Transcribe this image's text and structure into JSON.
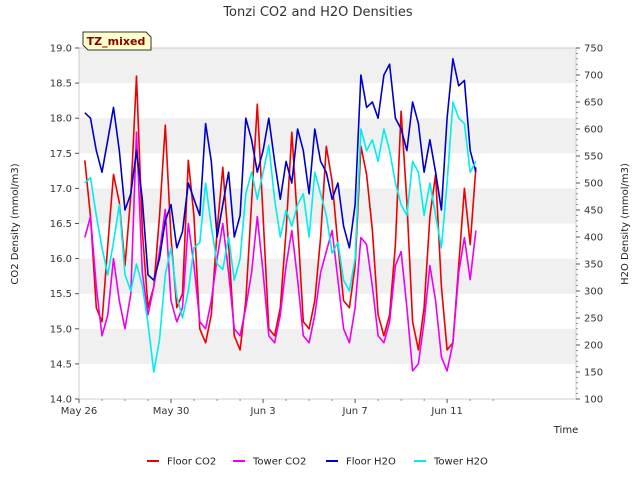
{
  "chart_data": {
    "type": "line",
    "title": "Tonzi CO2 and H2O Densities",
    "badge": "TZ_mixed",
    "xlabel": "Time",
    "ylabel_left": "CO2 Density (mmol/m3)",
    "ylabel_right": "H2O Density (mmol/m3)",
    "ylim_left": [
      14.0,
      19.0
    ],
    "ylim_right": [
      100,
      750
    ],
    "xlim": [
      0,
      21.6
    ],
    "x_ticks": [
      {
        "x": 0,
        "label": "May 26"
      },
      {
        "x": 4,
        "label": "May 30"
      },
      {
        "x": 8,
        "label": "Jun 3"
      },
      {
        "x": 12,
        "label": "Jun 7"
      },
      {
        "x": 16,
        "label": "Jun 11"
      }
    ],
    "y_ticks_left": [
      "14.0",
      "14.5",
      "15.0",
      "15.5",
      "16.0",
      "16.5",
      "17.0",
      "17.5",
      "18.0",
      "18.5",
      "19.0"
    ],
    "y_ticks_right": [
      "100",
      "150",
      "200",
      "250",
      "300",
      "350",
      "400",
      "450",
      "500",
      "550",
      "600",
      "650",
      "700",
      "750"
    ],
    "grid": "horizontal-bands",
    "legend_position": "bottom",
    "colors": {
      "floor_co2": "#ee0000",
      "tower_co2": "#ee00ee",
      "floor_h2o": "#0000cc",
      "tower_h2o": "#00eeee",
      "band": "#f0f0f0"
    },
    "series": [
      {
        "name": "Floor CO2",
        "axis": "left",
        "color": "#ee0000",
        "x": [
          0.25,
          0.5,
          0.75,
          1.0,
          1.25,
          1.5,
          1.75,
          2.0,
          2.25,
          2.5,
          2.75,
          3.0,
          3.25,
          3.5,
          3.75,
          4.0,
          4.25,
          4.5,
          4.75,
          5.0,
          5.25,
          5.5,
          5.75,
          6.0,
          6.25,
          6.5,
          6.75,
          7.0,
          7.25,
          7.5,
          7.75,
          8.0,
          8.25,
          8.5,
          8.75,
          9.0,
          9.25,
          9.5,
          9.75,
          10.0,
          10.25,
          10.5,
          10.75,
          11.0,
          11.25,
          11.5,
          11.75,
          12.0,
          12.25,
          12.5,
          12.75,
          13.0,
          13.25,
          13.5,
          13.75,
          14.0,
          14.25,
          14.5,
          14.75,
          15.0,
          15.25,
          15.5,
          15.75,
          16.0,
          16.25,
          16.5,
          16.75,
          17.0,
          17.25
        ],
        "y": [
          17.4,
          16.6,
          15.3,
          15.1,
          16.2,
          17.2,
          16.8,
          15.9,
          16.9,
          18.6,
          16.4,
          15.3,
          15.6,
          16.6,
          17.9,
          16.3,
          15.3,
          15.5,
          17.4,
          16.6,
          15.0,
          14.8,
          15.2,
          16.4,
          17.3,
          16.2,
          14.9,
          14.7,
          15.4,
          16.8,
          18.2,
          16.6,
          15.0,
          14.9,
          15.3,
          16.4,
          17.8,
          16.5,
          15.1,
          15.0,
          15.4,
          16.3,
          17.6,
          17.1,
          16.2,
          15.4,
          15.3,
          15.9,
          17.6,
          17.2,
          16.4,
          15.2,
          14.9,
          15.2,
          16.2,
          18.1,
          16.8,
          15.1,
          14.7,
          15.3,
          16.6,
          17.2,
          15.6,
          14.7,
          14.8,
          15.9,
          17.0,
          16.2,
          17.3
        ]
      },
      {
        "name": "Tower CO2",
        "axis": "left",
        "color": "#ee00ee",
        "x": [
          0.25,
          0.5,
          0.75,
          1.0,
          1.25,
          1.5,
          1.75,
          2.0,
          2.25,
          2.5,
          2.75,
          3.0,
          3.25,
          3.5,
          3.75,
          4.0,
          4.25,
          4.5,
          4.75,
          5.0,
          5.25,
          5.5,
          5.75,
          6.0,
          6.25,
          6.5,
          6.75,
          7.0,
          7.25,
          7.5,
          7.75,
          8.0,
          8.25,
          8.5,
          8.75,
          9.0,
          9.25,
          9.5,
          9.75,
          10.0,
          10.25,
          10.5,
          10.75,
          11.0,
          11.25,
          11.5,
          11.75,
          12.0,
          12.25,
          12.5,
          12.75,
          13.0,
          13.25,
          13.5,
          13.75,
          14.0,
          14.25,
          14.5,
          14.75,
          15.0,
          15.25,
          15.5,
          15.75,
          16.0,
          16.25,
          16.5,
          16.75,
          17.0,
          17.25
        ],
        "y": [
          16.3,
          16.6,
          15.6,
          14.9,
          15.2,
          16.0,
          15.4,
          15.0,
          15.5,
          17.8,
          15.8,
          15.2,
          15.6,
          16.1,
          16.7,
          15.4,
          15.1,
          15.3,
          16.5,
          15.9,
          15.1,
          15.0,
          15.4,
          16.0,
          16.5,
          15.8,
          15.0,
          14.9,
          15.3,
          15.8,
          16.6,
          15.8,
          14.9,
          14.8,
          15.2,
          15.9,
          16.4,
          15.7,
          14.9,
          14.8,
          15.2,
          15.8,
          16.1,
          16.4,
          15.7,
          15.0,
          14.8,
          15.3,
          16.3,
          16.2,
          15.6,
          14.9,
          14.8,
          15.1,
          15.9,
          16.1,
          15.3,
          14.4,
          14.5,
          15.1,
          15.9,
          15.4,
          14.6,
          14.4,
          14.8,
          15.8,
          16.3,
          15.7,
          16.4
        ]
      },
      {
        "name": "Floor H2O",
        "axis": "right",
        "color": "#0000cc",
        "x": [
          0.25,
          0.5,
          0.75,
          1.0,
          1.25,
          1.5,
          1.75,
          2.0,
          2.25,
          2.5,
          2.75,
          3.0,
          3.25,
          3.5,
          3.75,
          4.0,
          4.25,
          4.5,
          4.75,
          5.0,
          5.25,
          5.5,
          5.75,
          6.0,
          6.25,
          6.5,
          6.75,
          7.0,
          7.25,
          7.5,
          7.75,
          8.0,
          8.25,
          8.5,
          8.75,
          9.0,
          9.25,
          9.5,
          9.75,
          10.0,
          10.25,
          10.5,
          10.75,
          11.0,
          11.25,
          11.5,
          11.75,
          12.0,
          12.25,
          12.5,
          12.75,
          13.0,
          13.25,
          13.5,
          13.75,
          14.0,
          14.25,
          14.5,
          14.75,
          15.0,
          15.25,
          15.5,
          15.75,
          16.0,
          16.25,
          16.5,
          16.75,
          17.0,
          17.25
        ],
        "y": [
          630,
          620,
          560,
          520,
          580,
          640,
          560,
          450,
          480,
          560,
          470,
          330,
          320,
          360,
          430,
          460,
          380,
          410,
          500,
          470,
          440,
          610,
          540,
          400,
          460,
          520,
          400,
          440,
          620,
          580,
          520,
          560,
          620,
          540,
          470,
          540,
          500,
          600,
          560,
          480,
          600,
          540,
          520,
          470,
          500,
          420,
          380,
          460,
          700,
          640,
          650,
          620,
          700,
          720,
          620,
          600,
          560,
          650,
          610,
          520,
          580,
          520,
          450,
          620,
          730,
          680,
          690,
          560,
          520
        ]
      },
      {
        "name": "Tower H2O",
        "axis": "right",
        "color": "#00eeee",
        "x": [
          0.25,
          0.5,
          0.75,
          1.0,
          1.25,
          1.5,
          1.75,
          2.0,
          2.25,
          2.5,
          2.75,
          3.0,
          3.25,
          3.5,
          3.75,
          4.0,
          4.25,
          4.5,
          4.75,
          5.0,
          5.25,
          5.5,
          5.75,
          6.0,
          6.25,
          6.5,
          6.75,
          7.0,
          7.25,
          7.5,
          7.75,
          8.0,
          8.25,
          8.5,
          8.75,
          9.0,
          9.25,
          9.5,
          9.75,
          10.0,
          10.25,
          10.5,
          10.75,
          11.0,
          11.25,
          11.5,
          11.75,
          12.0,
          12.25,
          12.5,
          12.75,
          13.0,
          13.25,
          13.5,
          13.75,
          14.0,
          14.25,
          14.5,
          14.75,
          15.0,
          15.25,
          15.5,
          15.75,
          16.0,
          16.25,
          16.5,
          16.75,
          17.0,
          17.25
        ],
        "y": [
          500,
          510,
          440,
          380,
          330,
          390,
          460,
          330,
          300,
          350,
          310,
          240,
          150,
          210,
          330,
          380,
          290,
          250,
          300,
          380,
          390,
          500,
          420,
          350,
          340,
          400,
          320,
          360,
          480,
          520,
          470,
          520,
          570,
          470,
          400,
          450,
          420,
          460,
          480,
          400,
          520,
          480,
          440,
          370,
          390,
          320,
          300,
          360,
          600,
          560,
          580,
          540,
          600,
          560,
          500,
          460,
          440,
          540,
          520,
          440,
          500,
          440,
          380,
          500,
          650,
          620,
          610,
          520,
          540
        ]
      }
    ]
  }
}
